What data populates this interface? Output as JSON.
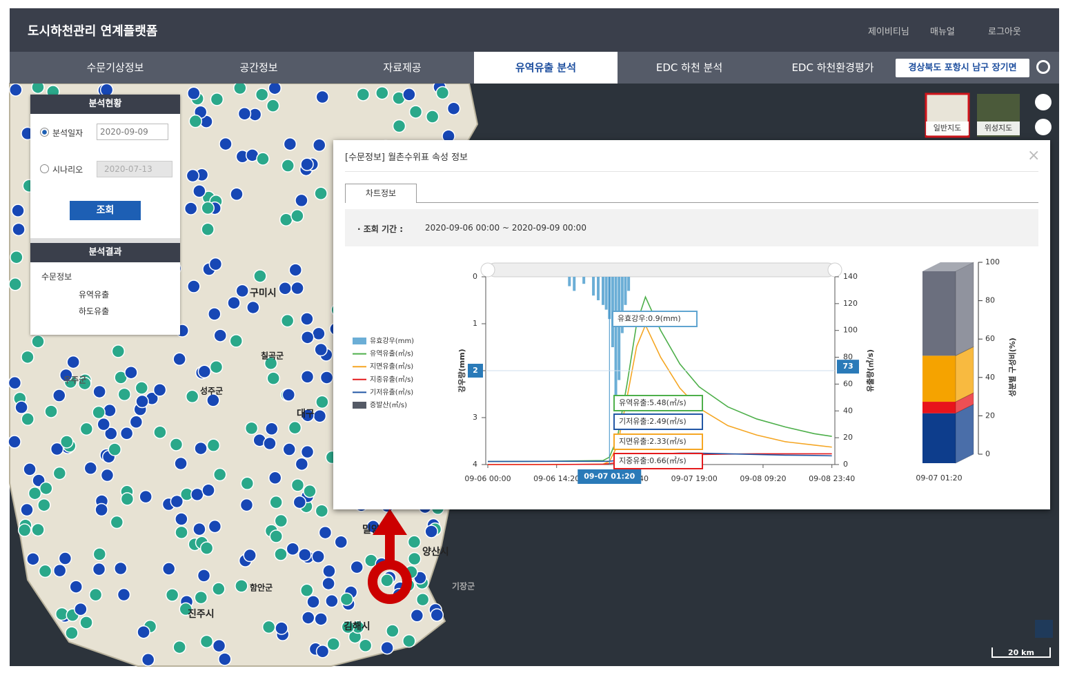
{
  "header": {
    "title": "도시하천관리 연계플랫폼",
    "user": "제이비티님",
    "manual": "매뉴얼",
    "logout": "로그아웃"
  },
  "nav": {
    "tabs": [
      "수문기상정보",
      "공간정보",
      "자료제공",
      "유역유출 분석",
      "EDC 하천 분석",
      "EDC 하천환경평가"
    ],
    "active": 3,
    "location": "경상북도 포항시 남구 장기면"
  },
  "panel": {
    "status_title": "분석현황",
    "date_option": "분석일자",
    "date": "2020-09-09",
    "scenario_option": "시나리오",
    "scenario": "2020-07-13",
    "button": "조회",
    "result_title": "분석결과",
    "layers": [
      "수문정보",
      "유역유출",
      "하도유출"
    ]
  },
  "map": {
    "labels": [
      "구미시",
      "칠곡군",
      "성주군",
      "대구",
      "우주군",
      "밀양",
      "함안군",
      "양산시",
      "진주시",
      "김해시",
      "기장군"
    ],
    "map_types": [
      "일반지도",
      "위성지도"
    ],
    "scale": "20 km"
  },
  "popup": {
    "title": "[수문정보] 월촌수위표 속성 정보",
    "tab": "차트정보",
    "period_label": "· 조회 기간 :",
    "period": "2020-09-06 00:00 ~ 2020-09-09 00:00"
  },
  "chart_data": [
    {
      "type": "line",
      "xlim": [
        "09-06 00:00",
        "09-09 00:00"
      ],
      "xticks": [
        "09-06 00:00",
        "09-06 14:20",
        "09-07 04:40",
        "09-07 19:00",
        "09-08 09:20",
        "09-08 23:40"
      ],
      "cursor": "09-07 01:20",
      "ylabel": "강우량(mm)",
      "y2label": "유출량(㎥/s)",
      "ylim": [
        0,
        4
      ],
      "y_inverted": true,
      "yticks": [
        0,
        1,
        2,
        3,
        4
      ],
      "y2lim": [
        0,
        140
      ],
      "y2ticks": [
        0,
        20,
        40,
        60,
        80,
        100,
        120,
        140
      ],
      "y_pointer": 2,
      "y2_pointer": 73,
      "x": [
        "09-06 00:00",
        "09-06 12:00",
        "09-07 00:00",
        "09-07 01:20",
        "09-07 03:00",
        "09-07 05:00",
        "09-07 07:00",
        "09-07 08:50",
        "09-07 12:00",
        "09-07 16:00",
        "09-07 20:00",
        "09-08 02:00",
        "09-08 08:00",
        "09-08 14:00",
        "09-08 20:00",
        "09-08 23:40"
      ],
      "series": [
        {
          "name": "유효강우(mm)",
          "type": "bar",
          "color": "#6baed6",
          "x": [
            "09-06 17:00",
            "09-06 18:00",
            "09-06 20:00",
            "09-06 22:00",
            "09-06 23:00",
            "09-07 00:00",
            "09-07 00:40",
            "09-07 01:20",
            "09-07 02:00",
            "09-07 02:40",
            "09-07 03:20",
            "09-07 04:00",
            "09-07 04:40",
            "09-07 05:20"
          ],
          "values": [
            0.2,
            0.3,
            0.15,
            0.4,
            0.5,
            0.6,
            0.7,
            0.9,
            1.5,
            2.6,
            2.2,
            1.2,
            0.6,
            0.3
          ]
        },
        {
          "name": "유역유출(㎥/s)",
          "color": "#4daf4a",
          "axis": "y2",
          "values": [
            2.3,
            2.4,
            3,
            5.48,
            20,
            60,
            105,
            125,
            100,
            75,
            58,
            43,
            34,
            28,
            23,
            21
          ]
        },
        {
          "name": "지면유출(㎥/s)",
          "color": "#f5a623",
          "axis": "y2",
          "values": [
            0,
            0,
            0.3,
            2.33,
            14,
            50,
            88,
            104,
            80,
            57,
            42,
            29,
            22,
            17,
            14.5,
            13
          ]
        },
        {
          "name": "지중유출(㎥/s)",
          "color": "#e41a1c",
          "axis": "y2",
          "values": [
            0,
            0,
            0.2,
            0.66,
            1.5,
            3,
            4.5,
            5.5,
            6.5,
            7,
            7.5,
            7.8,
            8,
            8,
            8,
            8
          ]
        },
        {
          "name": "기저유출(㎥/s)",
          "color": "#2156a5",
          "axis": "y2",
          "values": [
            2.3,
            2.4,
            2.4,
            2.49,
            3,
            4,
            5.5,
            7,
            8,
            8.5,
            8.5,
            8,
            7.5,
            7,
            6.8,
            6.5
          ]
        },
        {
          "name": "증발산(㎥/s)",
          "type": "bar",
          "color": "#555a66",
          "values": [
            null,
            null,
            null,
            null,
            null,
            null,
            null,
            null,
            null,
            null,
            null,
            null,
            null,
            null,
            null,
            null
          ]
        }
      ],
      "tooltips": [
        "유효강우:0.9(mm)",
        "유역유출:5.48(㎥/s)",
        "기저유출:2.49(㎥/s)",
        "지면유출:2.33(㎥/s)",
        "지중유출:0.66(㎥/s)"
      ]
    },
    {
      "type": "bar",
      "stacked": true,
      "categories": [
        "09-07 01:20"
      ],
      "ylim": [
        0,
        100
      ],
      "yticks": [
        0,
        20,
        40,
        60,
        80,
        100
      ],
      "ylabel": "성분별 구성비(%)",
      "series": [
        {
          "color": "#0d3d8c",
          "values": [
            26
          ]
        },
        {
          "color": "#e8141b",
          "values": [
            6
          ]
        },
        {
          "color": "#f5a300",
          "values": [
            24
          ]
        },
        {
          "color": "#6b6f7e",
          "values": [
            44
          ]
        }
      ]
    }
  ]
}
